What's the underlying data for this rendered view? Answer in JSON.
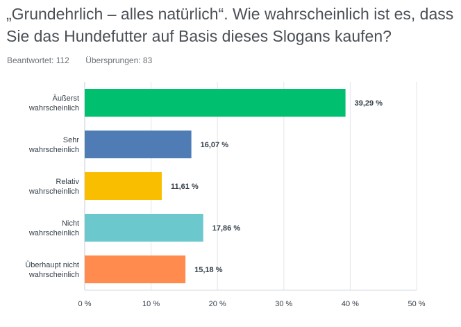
{
  "question": {
    "title": "„Grundehrlich – alles natürlich“. Wie wahrscheinlich ist es, dass Sie das Hundefutter auf Basis dieses Slogans kaufen?"
  },
  "stats": {
    "answered": "Beantwortet: 112",
    "skipped": "Übersprungen: 83"
  },
  "chart_data": {
    "type": "bar",
    "orientation": "horizontal",
    "categories": [
      [
        "Äußerst",
        "wahrscheinlich"
      ],
      [
        "Sehr",
        "wahrscheinlich"
      ],
      [
        "Relativ",
        "wahrscheinlich"
      ],
      [
        "Nicht",
        "wahrscheinlich"
      ],
      [
        "Überhaupt nicht",
        "wahrscheinlich"
      ]
    ],
    "values": [
      39.29,
      16.07,
      11.61,
      17.86,
      15.18
    ],
    "value_labels": [
      "39,29 %",
      "16,07 %",
      "11,61 %",
      "17,86 %",
      "15,18 %"
    ],
    "colors": [
      "#00bf6f",
      "#507cb6",
      "#f9be00",
      "#6bc8cd",
      "#ff8b4f"
    ],
    "xlim": [
      0,
      50
    ],
    "xticks": [
      0,
      10,
      20,
      30,
      40,
      50
    ],
    "xtick_labels": [
      "0 %",
      "10 %",
      "20 %",
      "30 %",
      "40 %",
      "50 %"
    ],
    "grid": true,
    "title": "",
    "xlabel": "",
    "ylabel": ""
  }
}
